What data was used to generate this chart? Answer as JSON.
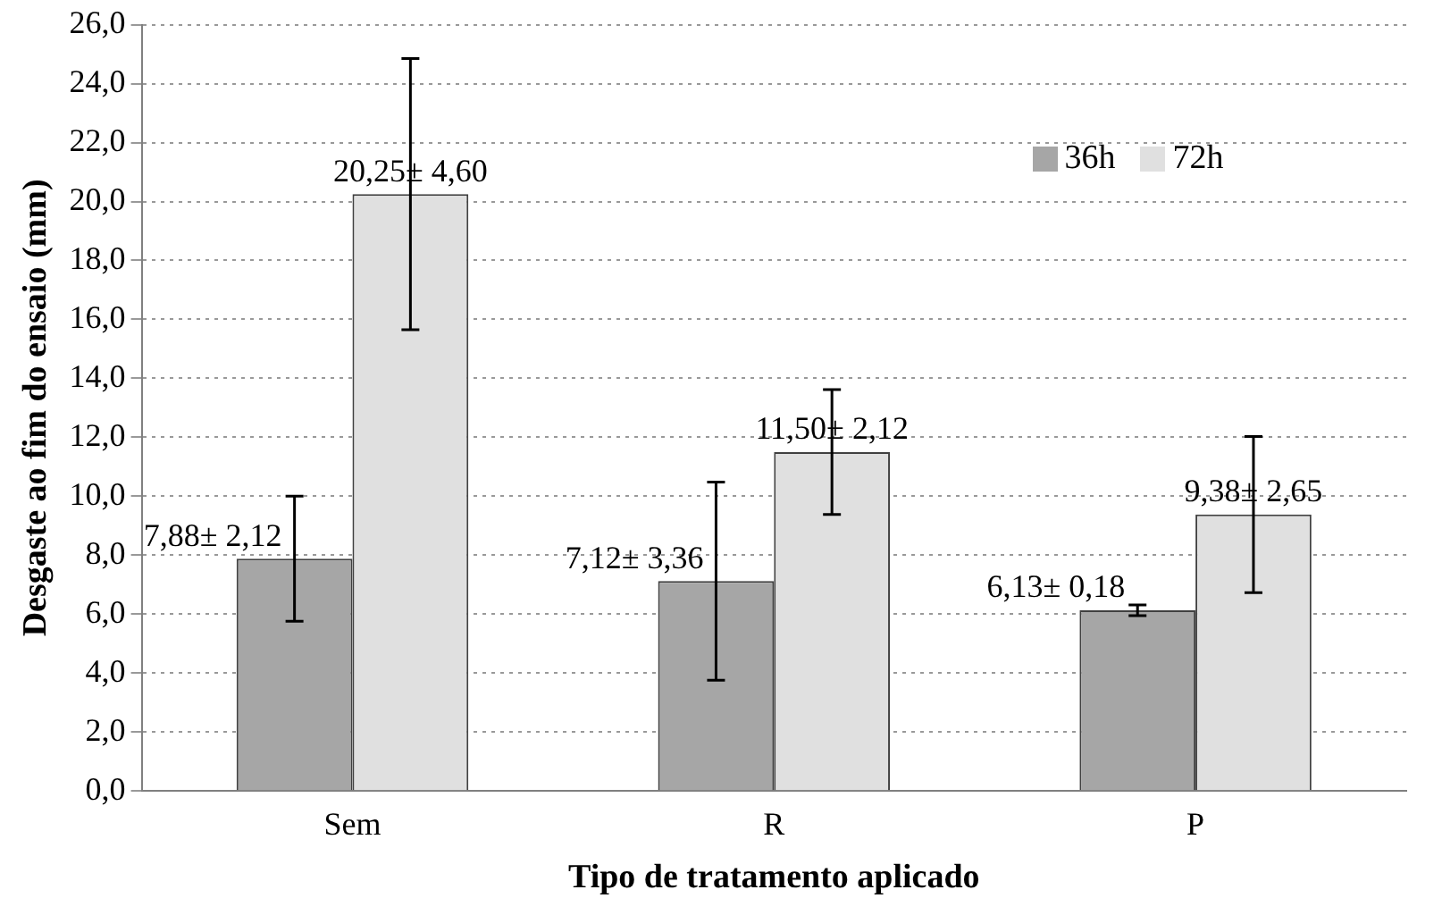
{
  "chart_data": {
    "type": "bar",
    "xlabel": "Tipo de tratamento aplicado",
    "ylabel": "Desgaste ao fim do ensaio (mm)",
    "categories": [
      "Sem",
      "R",
      "P"
    ],
    "series": [
      {
        "name": "36h",
        "color": "#a6a6a6",
        "values": [
          7.88,
          7.12,
          6.13
        ],
        "errors": [
          2.12,
          3.36,
          0.18
        ],
        "value_labels": [
          "7,88± 2,12",
          "7,12± 3,36",
          "6,13± 0,18"
        ]
      },
      {
        "name": "72h",
        "color": "#e0e0e0",
        "values": [
          20.25,
          11.5,
          9.38
        ],
        "errors": [
          4.6,
          2.12,
          2.65
        ],
        "value_labels": [
          "20,25± 4,60",
          "11,50± 2,12",
          "9,38± 2,65"
        ]
      }
    ],
    "ylim": [
      0,
      26
    ],
    "yticks": [
      {
        "value": 0,
        "label": "0,0"
      },
      {
        "value": 2,
        "label": "2,0"
      },
      {
        "value": 4,
        "label": "4,0"
      },
      {
        "value": 6,
        "label": "6,0"
      },
      {
        "value": 8,
        "label": "8,0"
      },
      {
        "value": 10,
        "label": "10,0"
      },
      {
        "value": 12,
        "label": "12,0"
      },
      {
        "value": 14,
        "label": "14,0"
      },
      {
        "value": 16,
        "label": "16,0"
      },
      {
        "value": 18,
        "label": "18,0"
      },
      {
        "value": 20,
        "label": "20,0"
      },
      {
        "value": 22,
        "label": "22,0"
      },
      {
        "value": 24,
        "label": "24,0"
      },
      {
        "value": 26,
        "label": "26,0"
      }
    ],
    "grid": "y",
    "legend": "top right"
  }
}
